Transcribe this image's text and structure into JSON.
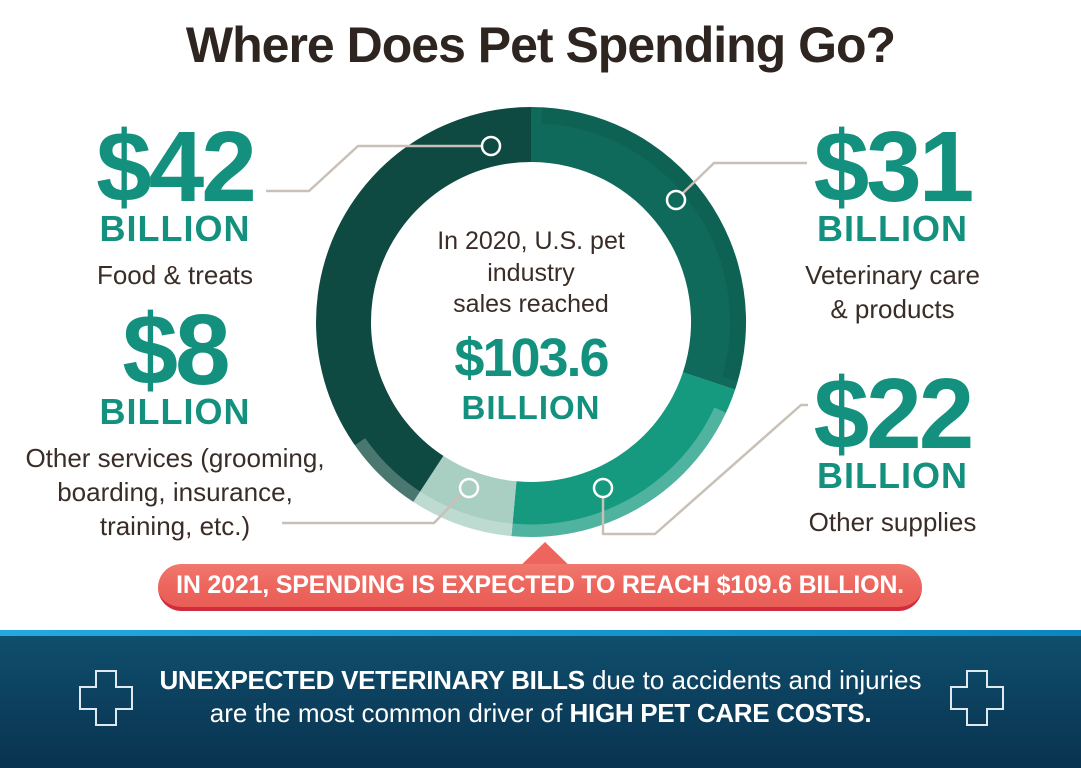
{
  "title": "Where Does Pet Spending Go?",
  "palette": {
    "teal_text": "#13917e",
    "dark_text": "#3a2d27",
    "segment_food": "#0e4a41",
    "segment_vet": "#0f6a5b",
    "segment_supplies": "#169a7f",
    "segment_services": "#a9cfc2",
    "leader_line": "#c9c0b7",
    "banner_red": "#ec655d",
    "banner_border_red": "#d22b3c",
    "band_blue_top": "#0f516e",
    "band_blue_bottom": "#093350",
    "band_strip_blue": "#0b86c2"
  },
  "chart_data": {
    "type": "pie",
    "subtype": "donut",
    "units": "billion USD",
    "total": 103.6,
    "total_label_lines": [
      "In 2020, U.S. pet",
      "industry",
      "sales reached"
    ],
    "total_value": "$103.6",
    "total_unit": "BILLION",
    "legend_position": "callouts around donut",
    "segments_clockwise_from_top": [
      {
        "name": "Veterinary care & products",
        "value": 31,
        "color": "#0f6a5b"
      },
      {
        "name": "Other supplies",
        "value": 22,
        "color": "#169a7f"
      },
      {
        "name": "Other services (grooming, boarding, insurance, training, etc.)",
        "value": 8,
        "color": "#a9cfc2"
      },
      {
        "name": "Food & treats",
        "value": 42,
        "color": "#0e4a41"
      }
    ],
    "projection_2021_billion": 109.6
  },
  "callouts": [
    {
      "id": "food-treats",
      "amount": "$42",
      "unit": "BILLION",
      "label": [
        "Food & treats"
      ]
    },
    {
      "id": "other-services",
      "amount": "$8",
      "unit": "BILLION",
      "label": [
        "Other services (grooming,",
        "boarding, insurance,",
        "training, etc.)"
      ]
    },
    {
      "id": "veterinary",
      "amount": "$31",
      "unit": "BILLION",
      "label": [
        "Veterinary care",
        "& products"
      ]
    },
    {
      "id": "other-supplies",
      "amount": "$22",
      "unit": "BILLION",
      "label": [
        "Other supplies"
      ]
    }
  ],
  "banner": {
    "text": "IN 2021, SPENDING IS EXPECTED TO REACH $109.6 BILLION."
  },
  "footer": {
    "line1_bold": "UNEXPECTED VETERINARY BILLS",
    "line1_rest": " due to accidents and injuries",
    "line2_lead": "are the most common driver of ",
    "line2_bold": "HIGH PET CARE COSTS.",
    "icon": "medical-cross"
  }
}
